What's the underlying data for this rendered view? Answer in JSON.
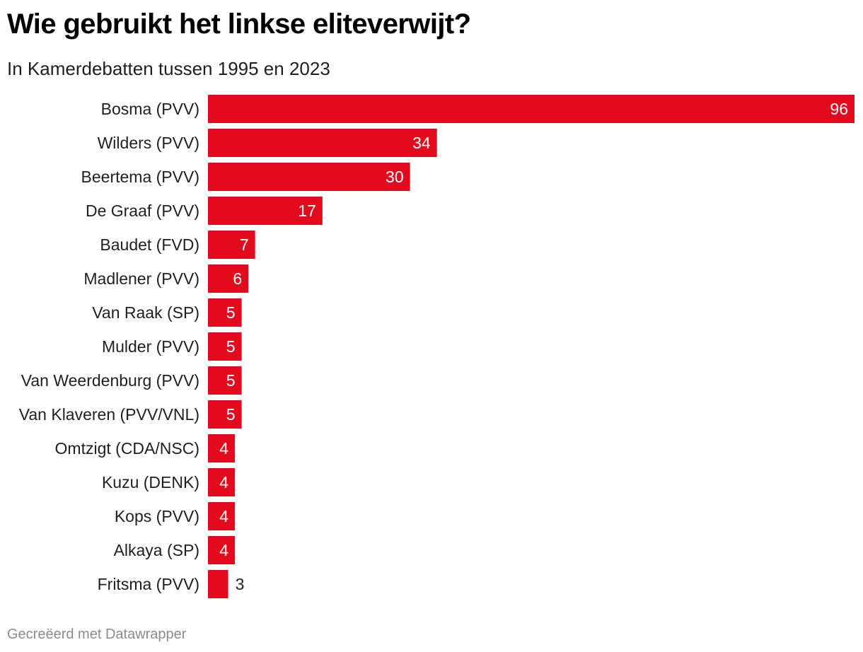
{
  "header": {
    "title": "Wie gebruikt het linkse eliteverwijt?",
    "subtitle": "In Kamerdebatten tussen 1995 en 2023"
  },
  "footer": {
    "credit": "Gecreëerd met Datawrapper"
  },
  "colors": {
    "bar": "#e30a1e",
    "value_inside": "#ffffff",
    "value_outside": "#1f1f1f"
  },
  "chart_data": {
    "type": "bar",
    "orientation": "horizontal",
    "title": "Wie gebruikt het linkse eliteverwijt?",
    "subtitle": "In Kamerdebatten tussen 1995 en 2023",
    "categories": [
      "Bosma (PVV)",
      "Wilders (PVV)",
      "Beertema (PVV)",
      "De Graaf (PVV)",
      "Baudet (FVD)",
      "Madlener (PVV)",
      "Van Raak (SP)",
      "Mulder (PVV)",
      "Van Weerdenburg (PVV)",
      "Van Klaveren (PVV/VNL)",
      "Omtzigt (CDA/NSC)",
      "Kuzu (DENK)",
      "Kops (PVV)",
      "Alkaya (SP)",
      "Fritsma (PVV)"
    ],
    "values": [
      96,
      34,
      30,
      17,
      7,
      6,
      5,
      5,
      5,
      5,
      4,
      4,
      4,
      4,
      3
    ],
    "xlim": [
      0,
      96
    ],
    "grid": false,
    "data_labels": true
  }
}
